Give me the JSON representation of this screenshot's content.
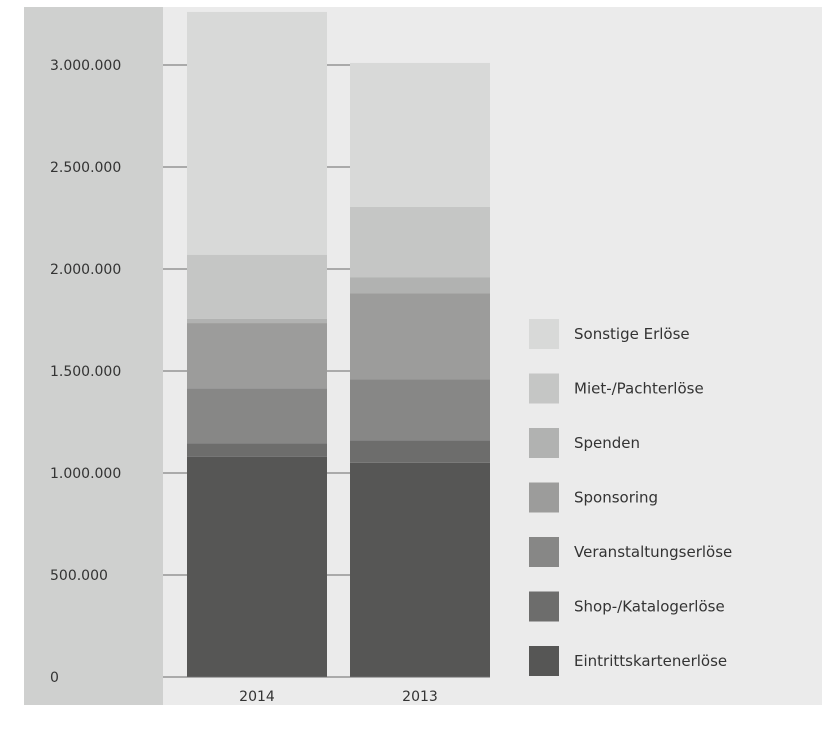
{
  "chart_data": {
    "type": "bar",
    "stacked": true,
    "categories": [
      "2014",
      "2013"
    ],
    "yticks": [
      "0",
      "500.000",
      "1.000.000",
      "1.500.000",
      "2.000.000",
      "2.500.000",
      "3.000.000"
    ],
    "ylim": [
      0,
      3250000
    ],
    "grid": false,
    "legend_position": "right",
    "series": [
      {
        "name": "Eintrittskartenerlöse",
        "color": "#565655",
        "values": [
          1080000,
          1050000
        ]
      },
      {
        "name": "Shop-/Katalogerlöse",
        "color": "#6d6d6c",
        "values": [
          65000,
          110000
        ]
      },
      {
        "name": "Veranstaltungserlöse",
        "color": "#878786",
        "values": [
          270000,
          300000
        ]
      },
      {
        "name": "Sponsoring",
        "color": "#9c9c9b",
        "values": [
          320000,
          420000
        ]
      },
      {
        "name": "Spenden",
        "color": "#b1b2b1",
        "values": [
          20000,
          80000
        ]
      },
      {
        "name": "Miet-/Pachterlöse",
        "color": "#c5c6c5",
        "values": [
          315000,
          345000
        ]
      },
      {
        "name": "Sonstige Erlöse",
        "color": "#d8d9d8",
        "values": [
          1190000,
          705000
        ]
      }
    ]
  }
}
